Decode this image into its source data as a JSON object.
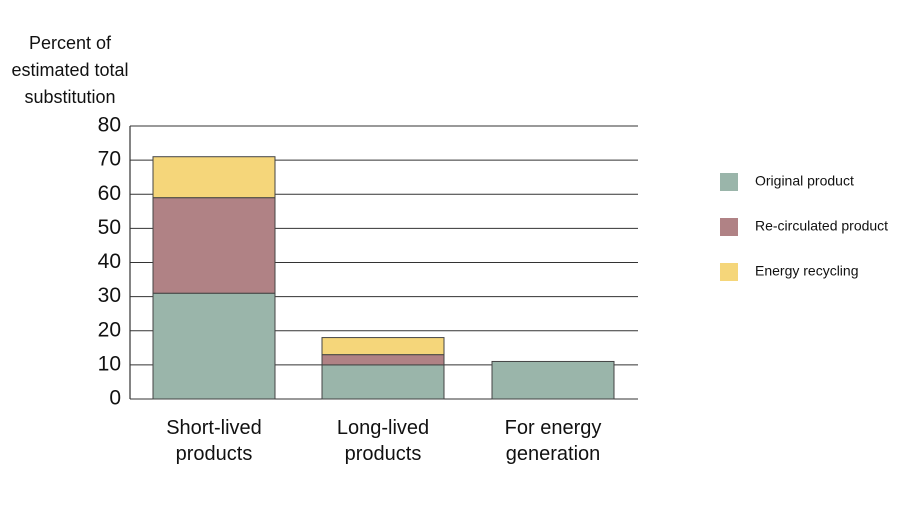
{
  "chart_data": {
    "type": "stacked_bar",
    "ylabel": [
      "Percent of",
      "estimated total",
      "substitution"
    ],
    "categories": [
      "Short-lived products",
      "Long-lived products",
      "For energy generation"
    ],
    "series": [
      {
        "name": "Original product",
        "color": "#9ab5aa",
        "values": [
          31,
          10,
          11
        ]
      },
      {
        "name": "Re-circulated product",
        "color": "#b08285",
        "values": [
          28,
          3,
          0
        ]
      },
      {
        "name": "Energy recycling",
        "color": "#f5d67a",
        "values": [
          12,
          5,
          0
        ]
      }
    ],
    "ylim": [
      0,
      80
    ],
    "yticks": [
      0,
      10,
      20,
      30,
      40,
      50,
      60,
      70,
      80
    ],
    "grid": true,
    "legend": "right"
  }
}
